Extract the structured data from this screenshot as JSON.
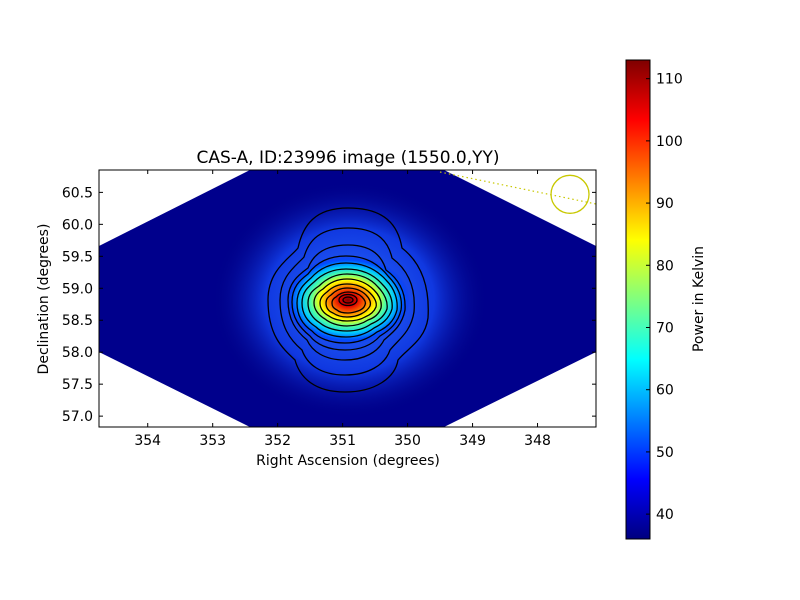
{
  "chart_data": {
    "type": "heatmap",
    "title": "CAS-A, ID:23996 image (1550.0,YY)",
    "xlabel": "Right Ascension (degrees)",
    "ylabel": "Declination (degrees)",
    "xlim": [
      354.75,
      347.1
    ],
    "ylim": [
      56.83,
      60.85
    ],
    "x_ticks": [
      "354",
      "353",
      "352",
      "351",
      "350",
      "349",
      "348"
    ],
    "x_tick_values": [
      354,
      353,
      352,
      351,
      350,
      349,
      348
    ],
    "y_ticks": [
      "57.0",
      "57.5",
      "58.0",
      "58.5",
      "59.0",
      "59.5",
      "60.0",
      "60.5"
    ],
    "y_tick_values": [
      57.0,
      57.5,
      58.0,
      58.5,
      59.0,
      59.5,
      60.0,
      60.5
    ],
    "colormap": "jet",
    "source_peak": {
      "ra": 350.85,
      "dec": 58.81,
      "value": 113
    },
    "colorbar": {
      "label": "Power in Kelvin",
      "range": [
        36,
        113
      ],
      "ticks": [
        "40",
        "50",
        "60",
        "70",
        "80",
        "90",
        "100",
        "110"
      ],
      "tick_values": [
        40,
        50,
        60,
        70,
        80,
        90,
        100,
        110
      ]
    },
    "grid": false,
    "marker": {
      "shape": "circle",
      "color": "#c8c800",
      "ra": 347.5,
      "dec": 60.47
    }
  }
}
